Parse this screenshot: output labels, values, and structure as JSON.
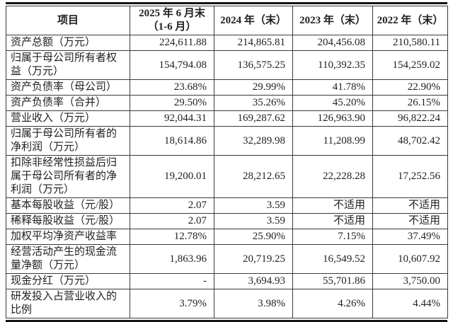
{
  "colors": {
    "page-bg": "#ffffff",
    "text": "#1f1f1f",
    "grid": "#3a3a3a",
    "frame": "#141414"
  },
  "table": {
    "columns": [
      {
        "label_lines": [
          "项目"
        ]
      },
      {
        "label_lines": [
          "2025 年 6 月末",
          "（1-6 月）"
        ]
      },
      {
        "label_lines": [
          "2024 年（末）"
        ]
      },
      {
        "label_lines": [
          "2023 年（末）"
        ]
      },
      {
        "label_lines": [
          "2022 年（末）"
        ]
      }
    ],
    "rows": [
      {
        "label": "资产总额（万元）",
        "values": [
          "224,611.88",
          "214,865.81",
          "204,456.08",
          "210,580.11"
        ]
      },
      {
        "label": "归属于母公司所有者权益（万元）",
        "values": [
          "154,794.08",
          "136,575.25",
          "110,392.35",
          "154,259.02"
        ]
      },
      {
        "label": "资产负债率（母公司）",
        "values": [
          "23.68%",
          "29.99%",
          "41.78%",
          "22.90%"
        ]
      },
      {
        "label": "资产负债率（合并）",
        "values": [
          "29.50%",
          "35.26%",
          "45.20%",
          "26.15%"
        ]
      },
      {
        "label": "营业收入（万元）",
        "values": [
          "92,044.31",
          "169,287.62",
          "126,963.90",
          "96,822.24"
        ]
      },
      {
        "label": "归属于母公司所有者的净利润（万元）",
        "values": [
          "18,614.86",
          "32,289.98",
          "11,208.99",
          "48,702.42"
        ]
      },
      {
        "label": "扣除非经常性损益后归属于母公司所有者的净利润（万元）",
        "values": [
          "19,200.01",
          "28,212.65",
          "22,228.28",
          "17,252.56"
        ]
      },
      {
        "label": "基本每股收益（元/股）",
        "values": [
          "2.07",
          "3.59",
          "不适用",
          "不适用"
        ]
      },
      {
        "label": "稀释每股收益（元/股）",
        "values": [
          "2.07",
          "3.59",
          "不适用",
          "不适用"
        ]
      },
      {
        "label": "加权平均净资产收益率",
        "values": [
          "12.78%",
          "25.90%",
          "7.15%",
          "37.49%"
        ]
      },
      {
        "label": "经营活动产生的现金流量净额（万元）",
        "values": [
          "1,863.96",
          "20,719.25",
          "16,549.52",
          "10,607.92"
        ]
      },
      {
        "label": "现金分红（万元）",
        "values": [
          "-",
          "3,694.93",
          "55,701.86",
          "3,750.00"
        ]
      },
      {
        "label": "研发投入占营业收入的比例",
        "values": [
          "3.79%",
          "3.98%",
          "4.26%",
          "4.44%"
        ]
      }
    ]
  }
}
